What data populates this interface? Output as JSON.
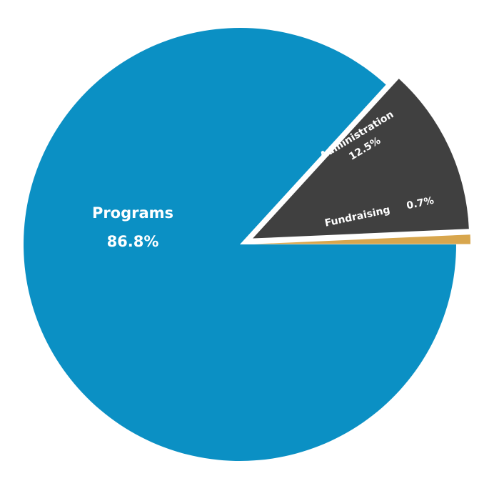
{
  "chart_data": {
    "type": "pie",
    "categories": [
      "Programs",
      "Administration",
      "Fundraising"
    ],
    "values": [
      86.8,
      12.5,
      0.7
    ],
    "value_labels": [
      "86.8%",
      "12.5%",
      "0.7%"
    ],
    "colors": [
      "#0b90c4",
      "#404040",
      "#d8a64d"
    ],
    "exploded": [
      false,
      true,
      true
    ]
  }
}
